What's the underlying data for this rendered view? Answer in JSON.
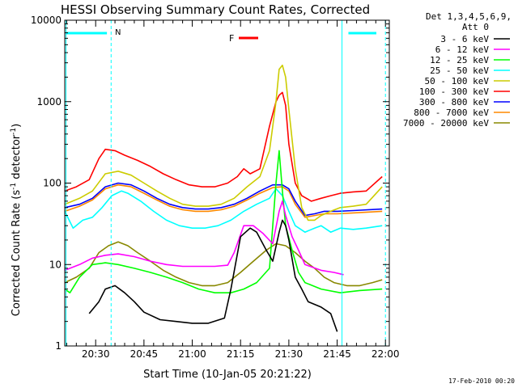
{
  "chart_data": {
    "type": "line",
    "title": "HESSI Observing Summary Count Rates, Corrected",
    "xlabel": "Start Time (10-Jan-05 20:21:22)",
    "ylabel_main": "Corrected Count Rate (s",
    "ylabel_sup1": "-1",
    "ylabel_mid": " detector",
    "ylabel_sup2": "-1",
    "ylabel_end": ")",
    "yscale": "log",
    "ylim": [
      1,
      10000
    ],
    "xlim_minutes": [
      20.4,
      21.2
    ],
    "x_ticks": [
      {
        "label": "20:30",
        "t": 30.0
      },
      {
        "label": "20:45",
        "t": 45.0
      },
      {
        "label": "21:00",
        "t": 60.0
      },
      {
        "label": "21:15",
        "t": 75.0
      },
      {
        "label": "21:30",
        "t": 90.0
      },
      {
        "label": "21:45",
        "t": 105.0
      },
      {
        "label": "22:00",
        "t": 120.0
      }
    ],
    "y_ticks": [
      {
        "label": "1",
        "v": 1
      },
      {
        "label": "10",
        "v": 10
      },
      {
        "label": "100",
        "v": 100
      },
      {
        "label": "1000",
        "v": 1000
      },
      {
        "label": "10000",
        "v": 10000
      }
    ],
    "legend_header_1": "Det 1,3,4,5,6,9,",
    "legend_header_2": "Att 0",
    "footer_timestamp": "17-Feb-2010 00:20",
    "annotations": [
      {
        "text": "N",
        "color": "#00ffff"
      },
      {
        "text": "F",
        "color": "#ff0000"
      }
    ],
    "series": [
      {
        "name": "3 - 6 keV",
        "color": "#000000",
        "points": [
          [
            28,
            2.5
          ],
          [
            31,
            3.5
          ],
          [
            33,
            5
          ],
          [
            36,
            5.5
          ],
          [
            39,
            4.5
          ],
          [
            42,
            3.5
          ],
          [
            45,
            2.6
          ],
          [
            50,
            2.1
          ],
          [
            55,
            2.0
          ],
          [
            60,
            1.9
          ],
          [
            65,
            1.9
          ],
          [
            70,
            2.2
          ],
          [
            72,
            5
          ],
          [
            75,
            22
          ],
          [
            78,
            28
          ],
          [
            80,
            25
          ],
          [
            83,
            15
          ],
          [
            85,
            11
          ],
          [
            87,
            25
          ],
          [
            88,
            35
          ],
          [
            89,
            30
          ],
          [
            90,
            20
          ],
          [
            92,
            7
          ],
          [
            94,
            5
          ],
          [
            96,
            3.5
          ],
          [
            100,
            3
          ],
          [
            103,
            2.5
          ],
          [
            105,
            1.5
          ]
        ]
      },
      {
        "name": "6 - 12 keV",
        "color": "#ff00ff",
        "points": [
          [
            20.4,
            8.5
          ],
          [
            25,
            10
          ],
          [
            29,
            12
          ],
          [
            33,
            13
          ],
          [
            37,
            13.5
          ],
          [
            42,
            12.5
          ],
          [
            47,
            11
          ],
          [
            52,
            10
          ],
          [
            57,
            9.5
          ],
          [
            62,
            9.5
          ],
          [
            67,
            9.5
          ],
          [
            71,
            9.8
          ],
          [
            73,
            14
          ],
          [
            76,
            30
          ],
          [
            79,
            30
          ],
          [
            82,
            24
          ],
          [
            85,
            18
          ],
          [
            87,
            45
          ],
          [
            88,
            60
          ],
          [
            89,
            40
          ],
          [
            91,
            22
          ],
          [
            93,
            15
          ],
          [
            95,
            10
          ],
          [
            100,
            8.5
          ],
          [
            104,
            8
          ],
          [
            107,
            7.5
          ]
        ]
      },
      {
        "name": "12 - 25 keV",
        "color": "#00ff00",
        "points": [
          [
            20.4,
            5
          ],
          [
            22,
            4.5
          ],
          [
            25,
            7
          ],
          [
            29,
            10
          ],
          [
            33,
            10.5
          ],
          [
            37,
            10
          ],
          [
            42,
            9
          ],
          [
            47,
            8
          ],
          [
            52,
            7
          ],
          [
            57,
            6
          ],
          [
            62,
            5
          ],
          [
            67,
            4.5
          ],
          [
            72,
            4.5
          ],
          [
            76,
            5
          ],
          [
            80,
            6
          ],
          [
            84,
            9
          ],
          [
            86,
            100
          ],
          [
            87,
            250
          ],
          [
            88,
            80
          ],
          [
            89,
            30
          ],
          [
            91,
            15
          ],
          [
            93,
            8
          ],
          [
            95,
            6
          ],
          [
            100,
            5
          ],
          [
            106,
            4.5
          ],
          [
            112,
            4.8
          ],
          [
            119,
            5
          ]
        ]
      },
      {
        "name": "25 - 50 keV",
        "color": "#00ffff",
        "points": [
          [
            20.4,
            45
          ],
          [
            23,
            28
          ],
          [
            26,
            35
          ],
          [
            29,
            38
          ],
          [
            32,
            50
          ],
          [
            35,
            70
          ],
          [
            38,
            80
          ],
          [
            40,
            75
          ],
          [
            44,
            60
          ],
          [
            48,
            45
          ],
          [
            52,
            35
          ],
          [
            56,
            30
          ],
          [
            60,
            28
          ],
          [
            64,
            28
          ],
          [
            68,
            30
          ],
          [
            72,
            35
          ],
          [
            76,
            45
          ],
          [
            80,
            55
          ],
          [
            84,
            65
          ],
          [
            86,
            85
          ],
          [
            88,
            70
          ],
          [
            90,
            45
          ],
          [
            92,
            30
          ],
          [
            95,
            25
          ],
          [
            98,
            28
          ],
          [
            100,
            30
          ],
          [
            103,
            25
          ],
          [
            106,
            28
          ],
          [
            110,
            27
          ],
          [
            114,
            28
          ],
          [
            119,
            30
          ]
        ]
      },
      {
        "name": "50 - 100 keV",
        "color": "#cccc00",
        "points": [
          [
            20.4,
            55
          ],
          [
            25,
            65
          ],
          [
            29,
            80
          ],
          [
            33,
            130
          ],
          [
            37,
            140
          ],
          [
            41,
            125
          ],
          [
            45,
            100
          ],
          [
            49,
            80
          ],
          [
            53,
            65
          ],
          [
            57,
            55
          ],
          [
            61,
            52
          ],
          [
            65,
            52
          ],
          [
            69,
            55
          ],
          [
            73,
            65
          ],
          [
            77,
            90
          ],
          [
            81,
            120
          ],
          [
            84,
            250
          ],
          [
            86,
            1000
          ],
          [
            87,
            2500
          ],
          [
            88,
            2800
          ],
          [
            89,
            2000
          ],
          [
            90,
            800
          ],
          [
            92,
            150
          ],
          [
            94,
            50
          ],
          [
            96,
            35
          ],
          [
            98,
            35
          ],
          [
            100,
            40
          ],
          [
            103,
            45
          ],
          [
            106,
            50
          ],
          [
            110,
            52
          ],
          [
            114,
            55
          ],
          [
            119,
            90
          ]
        ]
      },
      {
        "name": "100 - 300 keV",
        "color": "#ff0000",
        "points": [
          [
            20.4,
            80
          ],
          [
            24,
            90
          ],
          [
            28,
            110
          ],
          [
            31,
            200
          ],
          [
            33,
            260
          ],
          [
            36,
            250
          ],
          [
            39,
            220
          ],
          [
            43,
            190
          ],
          [
            47,
            160
          ],
          [
            51,
            130
          ],
          [
            55,
            110
          ],
          [
            59,
            95
          ],
          [
            63,
            90
          ],
          [
            67,
            90
          ],
          [
            71,
            100
          ],
          [
            74,
            120
          ],
          [
            76,
            150
          ],
          [
            78,
            130
          ],
          [
            81,
            150
          ],
          [
            84,
            500
          ],
          [
            86,
            1000
          ],
          [
            87,
            1200
          ],
          [
            88,
            1300
          ],
          [
            89,
            900
          ],
          [
            90,
            300
          ],
          [
            92,
            100
          ],
          [
            94,
            70
          ],
          [
            97,
            60
          ],
          [
            100,
            65
          ],
          [
            103,
            70
          ],
          [
            106,
            75
          ],
          [
            110,
            78
          ],
          [
            114,
            80
          ],
          [
            119,
            120
          ]
        ]
      },
      {
        "name": "300 - 800 keV",
        "color": "#0000ff",
        "points": [
          [
            20.4,
            50
          ],
          [
            25,
            55
          ],
          [
            29,
            65
          ],
          [
            33,
            90
          ],
          [
            37,
            100
          ],
          [
            41,
            95
          ],
          [
            45,
            80
          ],
          [
            49,
            65
          ],
          [
            53,
            55
          ],
          [
            57,
            50
          ],
          [
            61,
            48
          ],
          [
            65,
            48
          ],
          [
            69,
            50
          ],
          [
            73,
            55
          ],
          [
            77,
            65
          ],
          [
            81,
            80
          ],
          [
            85,
            95
          ],
          [
            88,
            95
          ],
          [
            90,
            85
          ],
          [
            92,
            60
          ],
          [
            95,
            40
          ],
          [
            98,
            42
          ],
          [
            101,
            45
          ],
          [
            105,
            45
          ],
          [
            110,
            46
          ],
          [
            119,
            48
          ]
        ]
      },
      {
        "name": "800 - 7000 keV",
        "color": "#ff8800",
        "points": [
          [
            20.4,
            45
          ],
          [
            25,
            52
          ],
          [
            29,
            62
          ],
          [
            33,
            85
          ],
          [
            37,
            95
          ],
          [
            41,
            90
          ],
          [
            45,
            75
          ],
          [
            49,
            62
          ],
          [
            53,
            52
          ],
          [
            57,
            47
          ],
          [
            61,
            45
          ],
          [
            65,
            45
          ],
          [
            69,
            47
          ],
          [
            73,
            52
          ],
          [
            77,
            62
          ],
          [
            81,
            75
          ],
          [
            85,
            88
          ],
          [
            88,
            90
          ],
          [
            90,
            80
          ],
          [
            92,
            55
          ],
          [
            95,
            38
          ],
          [
            98,
            40
          ],
          [
            101,
            42
          ],
          [
            105,
            42
          ],
          [
            110,
            43
          ],
          [
            119,
            45
          ]
        ]
      },
      {
        "name": "7000 - 20000 keV",
        "color": "#888800",
        "points": [
          [
            20.4,
            6
          ],
          [
            24,
            7
          ],
          [
            28,
            9
          ],
          [
            31,
            14
          ],
          [
            34,
            17
          ],
          [
            37,
            19
          ],
          [
            40,
            17
          ],
          [
            43,
            14
          ],
          [
            47,
            11
          ],
          [
            51,
            8.5
          ],
          [
            55,
            7
          ],
          [
            59,
            6
          ],
          [
            63,
            5.5
          ],
          [
            67,
            5.5
          ],
          [
            71,
            6
          ],
          [
            75,
            8
          ],
          [
            79,
            11
          ],
          [
            83,
            15
          ],
          [
            86,
            18
          ],
          [
            89,
            17
          ],
          [
            92,
            14
          ],
          [
            95,
            11
          ],
          [
            98,
            9
          ],
          [
            101,
            7
          ],
          [
            104,
            6
          ],
          [
            108,
            5.5
          ],
          [
            112,
            5.5
          ],
          [
            116,
            6
          ],
          [
            119,
            6.5
          ]
        ]
      }
    ]
  }
}
